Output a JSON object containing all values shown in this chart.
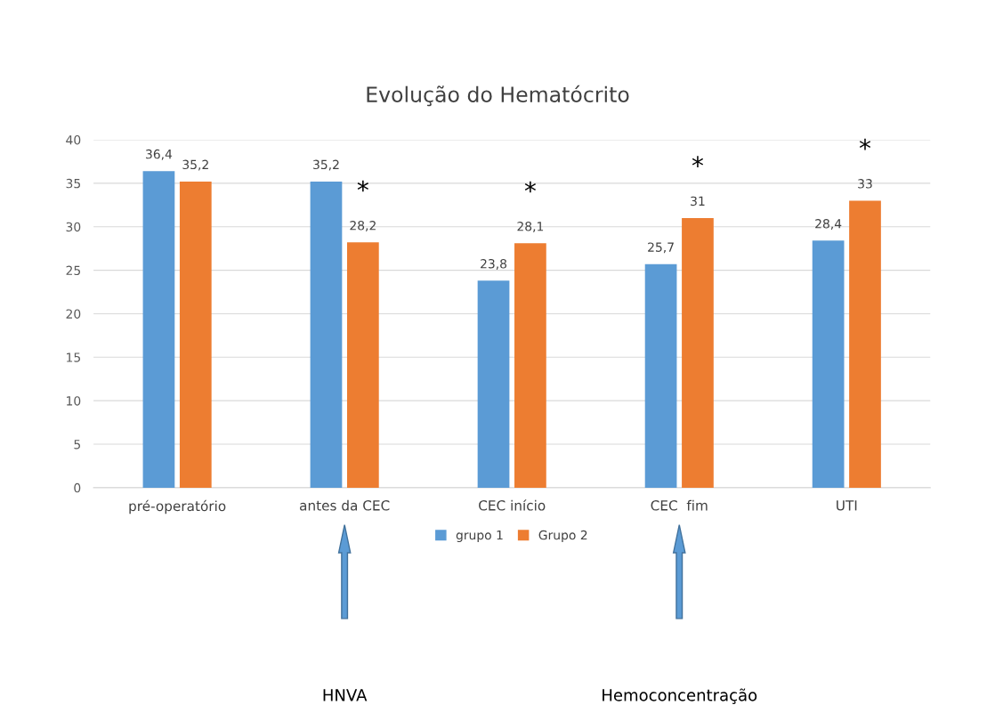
{
  "chart_data": {
    "type": "bar",
    "title": "Evolução do Hematócrito",
    "categories": [
      "pré-operatório",
      "antes da CEC",
      "CEC início",
      "CEC  fim",
      "UTI"
    ],
    "series": [
      {
        "name": "grupo 1",
        "color": "#5b9bd5",
        "values": [
          36.4,
          35.2,
          23.8,
          25.7,
          28.4
        ],
        "value_labels": [
          "36,4",
          "35,2",
          "23,8",
          "25,7",
          "28,4"
        ]
      },
      {
        "name": "Grupo 2",
        "color": "#ed7d31",
        "values": [
          35.2,
          28.2,
          28.1,
          31,
          33
        ],
        "value_labels": [
          "35,2",
          "28,2",
          "28,1",
          "31",
          "33"
        ]
      }
    ],
    "ylim": [
      0,
      40
    ],
    "yticks": [
      0,
      5,
      10,
      15,
      20,
      25,
      30,
      35,
      40
    ],
    "grid": "y",
    "legend": "bottom",
    "annotations": [
      "*",
      "*",
      "*",
      "*",
      "HNVA",
      "Hemoconcentração"
    ]
  }
}
